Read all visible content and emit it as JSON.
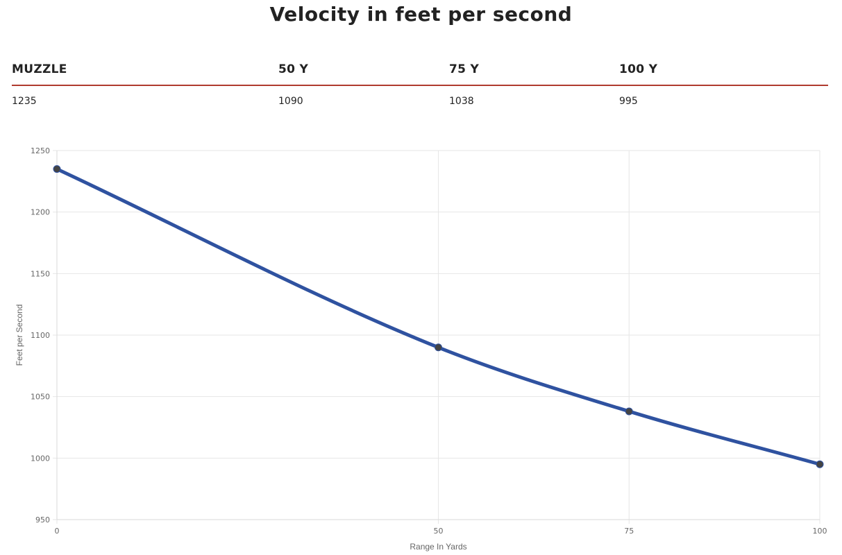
{
  "page": {
    "title": "Velocity in feet per second"
  },
  "table": {
    "headers": [
      "MUZZLE",
      "50 Y",
      "75 Y",
      "100 Y"
    ],
    "values": [
      "1235",
      "1090",
      "1038",
      "995"
    ]
  },
  "chart_data": {
    "type": "line",
    "x": [
      0,
      50,
      75,
      100
    ],
    "series": [
      {
        "values": [
          1235,
          1090,
          1038,
          995
        ],
        "color": "#2f52a0",
        "point_color": "#444444"
      }
    ],
    "xlabel": "Range In Yards",
    "ylabel": "Feet per Second",
    "xlim": [
      0,
      100
    ],
    "ylim": [
      950,
      1250
    ],
    "x_ticks": [
      0,
      50,
      75,
      100
    ],
    "y_ticks": [
      950,
      1000,
      1050,
      1100,
      1150,
      1200,
      1250
    ],
    "grid": true,
    "grid_color": "#e6e6e6"
  }
}
